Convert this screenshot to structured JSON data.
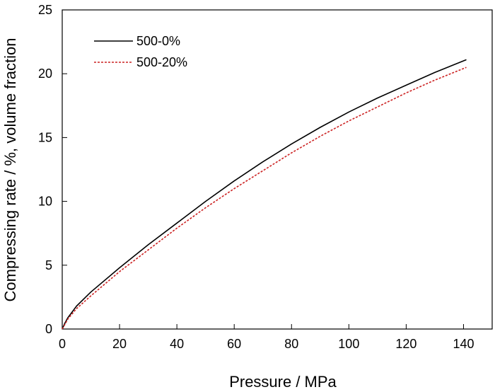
{
  "chart_data": {
    "type": "line",
    "xlabel": "Pressure / MPa",
    "ylabel": "Compressing rate / %, volume fraction",
    "xlim": [
      0,
      150
    ],
    "ylim": [
      0,
      25
    ],
    "xticks": [
      0,
      20,
      40,
      60,
      80,
      100,
      120,
      140
    ],
    "yticks": [
      0,
      5,
      10,
      15,
      20,
      25
    ],
    "grid": false,
    "legend_position": "top-left",
    "series": [
      {
        "name": "500-0%",
        "color": "#000000",
        "line_style": "solid",
        "x": [
          0,
          1,
          2,
          5,
          10,
          20,
          30,
          40,
          50,
          60,
          70,
          80,
          90,
          100,
          110,
          120,
          130,
          141
        ],
        "y": [
          0,
          0.5,
          0.9,
          1.8,
          2.9,
          4.8,
          6.6,
          8.3,
          10.0,
          11.6,
          13.1,
          14.5,
          15.8,
          17.0,
          18.1,
          19.1,
          20.1,
          21.1
        ]
      },
      {
        "name": "500-20%",
        "color": "#cc2222",
        "line_style": "dashed",
        "x": [
          0,
          1,
          2,
          5,
          10,
          20,
          30,
          40,
          50,
          60,
          70,
          80,
          90,
          100,
          110,
          120,
          130,
          141
        ],
        "y": [
          0,
          0.4,
          0.8,
          1.6,
          2.6,
          4.5,
          6.2,
          7.9,
          9.5,
          11.0,
          12.4,
          13.8,
          15.1,
          16.3,
          17.4,
          18.5,
          19.5,
          20.5
        ]
      }
    ]
  }
}
